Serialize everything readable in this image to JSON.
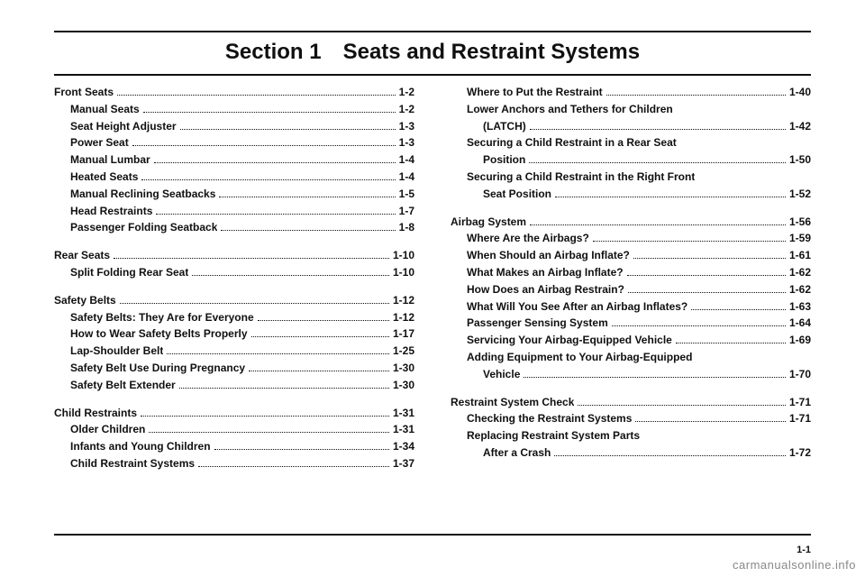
{
  "section_title": "Section 1 Seats and Restraint Systems",
  "page_number": "1-1",
  "watermark": "carmanualsonline.info",
  "left": {
    "groups": [
      {
        "head": {
          "label": "Front Seats",
          "page": "1-2"
        },
        "items": [
          {
            "label": "Manual Seats",
            "page": "1-2"
          },
          {
            "label": "Seat Height Adjuster",
            "page": "1-3"
          },
          {
            "label": "Power Seat",
            "page": "1-3"
          },
          {
            "label": "Manual Lumbar",
            "page": "1-4"
          },
          {
            "label": "Heated Seats",
            "page": "1-4"
          },
          {
            "label": "Manual Reclining Seatbacks",
            "page": "1-5"
          },
          {
            "label": "Head Restraints",
            "page": "1-7"
          },
          {
            "label": "Passenger Folding Seatback",
            "page": "1-8"
          }
        ]
      },
      {
        "head": {
          "label": "Rear Seats",
          "page": "1-10"
        },
        "items": [
          {
            "label": "Split Folding Rear Seat",
            "page": "1-10"
          }
        ]
      },
      {
        "head": {
          "label": "Safety Belts",
          "page": "1-12"
        },
        "items": [
          {
            "label": "Safety Belts: They Are for Everyone",
            "page": "1-12"
          },
          {
            "label": "How to Wear Safety Belts Properly",
            "page": "1-17"
          },
          {
            "label": "Lap-Shoulder Belt",
            "page": "1-25"
          },
          {
            "label": "Safety Belt Use During Pregnancy",
            "page": "1-30"
          },
          {
            "label": "Safety Belt Extender",
            "page": "1-30"
          }
        ]
      },
      {
        "head": {
          "label": "Child Restraints",
          "page": "1-31"
        },
        "items": [
          {
            "label": "Older Children",
            "page": "1-31"
          },
          {
            "label": "Infants and Young Children",
            "page": "1-34"
          },
          {
            "label": "Child Restraint Systems",
            "page": "1-37"
          }
        ]
      }
    ]
  },
  "right_rows": [
    {
      "type": "sub",
      "label": "Where to Put the Restraint",
      "page": "1-40"
    },
    {
      "type": "subtext",
      "label": "Lower Anchors and Tethers for Children"
    },
    {
      "type": "cont",
      "label": "(LATCH)",
      "page": "1-42"
    },
    {
      "type": "subtext",
      "label": "Securing a Child Restraint in a Rear Seat"
    },
    {
      "type": "cont",
      "label": "Position",
      "page": "1-50"
    },
    {
      "type": "subtext",
      "label": "Securing a Child Restraint in the Right Front"
    },
    {
      "type": "cont",
      "label": "Seat Position",
      "page": "1-52"
    },
    {
      "type": "headgap",
      "label": "Airbag System",
      "page": "1-56"
    },
    {
      "type": "sub",
      "label": "Where Are the Airbags?",
      "page": "1-59"
    },
    {
      "type": "sub",
      "label": "When Should an Airbag Inflate?",
      "page": "1-61"
    },
    {
      "type": "sub",
      "label": "What Makes an Airbag Inflate?",
      "page": "1-62"
    },
    {
      "type": "sub",
      "label": "How Does an Airbag Restrain?",
      "page": "1-62"
    },
    {
      "type": "sub",
      "label": "What Will You See After an Airbag Inflates?",
      "page": "1-63"
    },
    {
      "type": "sub",
      "label": "Passenger Sensing System",
      "page": "1-64"
    },
    {
      "type": "sub",
      "label": "Servicing Your Airbag-Equipped Vehicle",
      "page": "1-69"
    },
    {
      "type": "subtext",
      "label": "Adding Equipment to Your Airbag-Equipped"
    },
    {
      "type": "cont",
      "label": "Vehicle",
      "page": "1-70"
    },
    {
      "type": "headgap",
      "label": "Restraint System Check",
      "page": "1-71"
    },
    {
      "type": "sub",
      "label": "Checking the Restraint Systems",
      "page": "1-71"
    },
    {
      "type": "subtext",
      "label": "Replacing Restraint System Parts"
    },
    {
      "type": "cont",
      "label": "After a Crash",
      "page": "1-72"
    }
  ]
}
